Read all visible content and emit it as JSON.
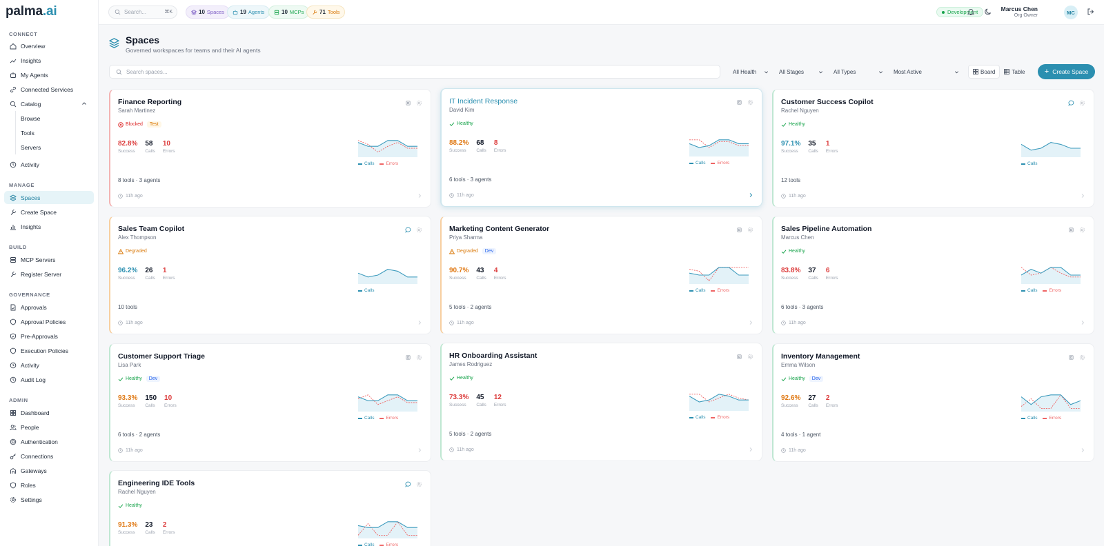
{
  "logo": {
    "main": "palma",
    "accent": ".ai"
  },
  "sidebar": {
    "sections": {
      "connect": "CONNECT",
      "manage": "MANAGE",
      "build": "BUILD",
      "governance": "GOVERNANCE",
      "admin": "ADMIN"
    },
    "items": {
      "overview": "Overview",
      "insights": "Insights",
      "my_agents": "My Agents",
      "connected_services": "Connected Services",
      "catalog": "Catalog",
      "browse": "Browse",
      "tools": "Tools",
      "servers": "Servers",
      "activity": "Activity",
      "spaces": "Spaces",
      "create_space": "Create Space",
      "insights2": "Insights",
      "mcp_servers": "MCP Servers",
      "register_server": "Register Server",
      "approvals": "Approvals",
      "approval_policies": "Approval Policies",
      "pre_approvals": "Pre-Approvals",
      "execution_policies": "Execution Policies",
      "activity2": "Activity",
      "audit_log": "Audit Log",
      "dashboard": "Dashboard",
      "people": "People",
      "authentication": "Authentication",
      "connections": "Connections",
      "gateways": "Gateways",
      "roles": "Roles",
      "settings": "Settings"
    }
  },
  "topbar": {
    "search_placeholder": "Search...",
    "shortcut": "⌘K",
    "counts": {
      "spaces": {
        "value": "10",
        "label": "Spaces",
        "color": "#7c5cc4"
      },
      "agents": {
        "value": "19",
        "label": "Agents",
        "color": "#2b8fb0"
      },
      "mcps": {
        "value": "10",
        "label": "MCPs",
        "color": "#16a34a"
      },
      "tools": {
        "value": "71",
        "label": "Tools",
        "color": "#d97706"
      }
    },
    "environment": "Development",
    "user": {
      "name": "Marcus Chen",
      "role": "Org Owner",
      "initials": "MC"
    }
  },
  "header": {
    "title": "Spaces",
    "subtitle": "Governed workspaces for teams and their AI agents"
  },
  "filters": {
    "search_placeholder": "Search spaces...",
    "health": "All Health",
    "stages": "All Stages",
    "types": "All Types",
    "sort": "Most Active",
    "view_board": "Board",
    "view_table": "Table",
    "create": "Create Space"
  },
  "labels": {
    "success": "Success",
    "calls": "Calls",
    "errors": "Errors",
    "legend_calls": "Calls",
    "legend_errors": "Errors"
  },
  "cards": [
    {
      "title": "Finance Reporting",
      "owner": "Sarah Martinez",
      "status": "Blocked",
      "tag": "Test",
      "success": "82.8%",
      "calls": "58",
      "errors": "10",
      "meta": "8 tools · 3 agents",
      "time": "11h ago",
      "calls_series": [
        8,
        6,
        6,
        9,
        9,
        6,
        6
      ],
      "errors_series": [
        9,
        7,
        3,
        6,
        8,
        5,
        5
      ]
    },
    {
      "title": "IT Incident Response",
      "owner": "David Kim",
      "status": "Healthy",
      "tag": "",
      "success": "88.2%",
      "calls": "68",
      "errors": "8",
      "meta": "6 tools · 3 agents",
      "time": "11h ago",
      "calls_series": [
        7,
        5,
        6,
        9,
        9,
        7,
        7
      ],
      "errors_series": [
        9,
        9,
        5,
        8,
        8,
        6,
        6
      ]
    },
    {
      "title": "Customer Success Copilot",
      "owner": "Rachel Nguyen",
      "status": "Healthy",
      "tag": "",
      "success": "97.1%",
      "calls": "35",
      "errors": "1",
      "meta": "12 tools",
      "time": "11h ago",
      "calls_series": [
        7,
        4,
        5,
        8,
        7,
        5,
        5
      ],
      "errors_series": null
    },
    {
      "title": "Sales Team Copilot",
      "owner": "Alex Thompson",
      "status": "Degraded",
      "tag": "",
      "success": "96.2%",
      "calls": "26",
      "errors": "1",
      "meta": "10 tools",
      "time": "11h ago",
      "calls_series": [
        6,
        4,
        5,
        8,
        7,
        4,
        4
      ],
      "errors_series": null
    },
    {
      "title": "Marketing Content Generator",
      "owner": "Priya Sharma",
      "status": "Degraded",
      "tag": "Dev",
      "success": "90.7%",
      "calls": "43",
      "errors": "4",
      "meta": "5 tools · 2 agents",
      "time": "11h ago",
      "calls_series": [
        6,
        5,
        5,
        9,
        9,
        5,
        5
      ],
      "errors_series": [
        8,
        7,
        2,
        9,
        9,
        9,
        9
      ]
    },
    {
      "title": "Sales Pipeline Automation",
      "owner": "Marcus Chen",
      "status": "Healthy",
      "tag": "",
      "success": "83.8%",
      "calls": "37",
      "errors": "6",
      "meta": "6 tools · 3 agents",
      "time": "11h ago",
      "calls_series": [
        5,
        8,
        6,
        9,
        9,
        5,
        5
      ],
      "errors_series": [
        9,
        5,
        6,
        9,
        6,
        4,
        4
      ]
    },
    {
      "title": "Customer Support Triage",
      "owner": "Lisa Park",
      "status": "Healthy",
      "tag": "Dev",
      "success": "93.3%",
      "calls": "150",
      "errors": "10",
      "meta": "6 tools · 2 agents",
      "time": "11h ago",
      "calls_series": [
        8,
        6,
        6,
        9,
        9,
        6,
        6
      ],
      "errors_series": [
        7,
        9,
        4,
        6,
        8,
        5,
        5
      ]
    },
    {
      "title": "HR Onboarding Assistant",
      "owner": "James Rodriguez",
      "status": "Healthy",
      "tag": "",
      "success": "73.3%",
      "calls": "45",
      "errors": "12",
      "meta": "5 tools · 2 agents",
      "time": "11h ago",
      "calls_series": [
        8,
        5,
        6,
        9,
        8,
        6,
        6
      ],
      "errors_series": [
        9,
        9,
        5,
        7,
        9,
        7,
        6
      ]
    },
    {
      "title": "Inventory Management",
      "owner": "Emma Wilson",
      "status": "Healthy",
      "tag": "Dev",
      "success": "92.6%",
      "calls": "27",
      "errors": "2",
      "meta": "4 tools · 1 agent",
      "time": "11h ago",
      "calls_series": [
        8,
        4,
        8,
        9,
        9,
        4,
        6
      ],
      "errors_series": [
        3,
        7,
        2,
        2,
        9,
        2,
        2
      ]
    },
    {
      "title": "Engineering IDE Tools",
      "owner": "Rachel Nguyen",
      "status": "Healthy",
      "tag": "",
      "success": "91.3%",
      "calls": "23",
      "errors": "2",
      "meta": "",
      "time": "",
      "calls_series": [
        7,
        6,
        6,
        9,
        9,
        6,
        6
      ],
      "errors_series": [
        2,
        8,
        2,
        2,
        9,
        2,
        2
      ]
    }
  ]
}
